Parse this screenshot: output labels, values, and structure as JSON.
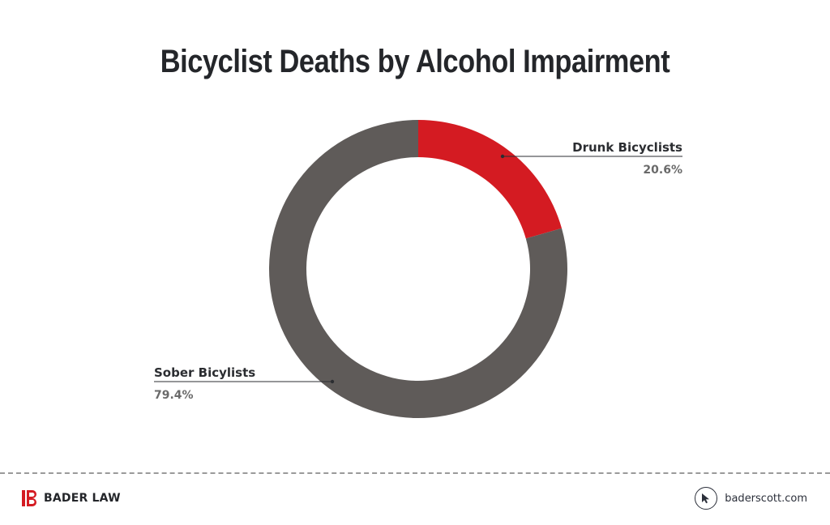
{
  "title": "Bicyclist Deaths by Alcohol Impairment",
  "chart_data": {
    "type": "pie",
    "donut": true,
    "title": "Bicyclist Deaths by Alcohol Impairment",
    "labels": [
      "Drunk Bicyclists",
      "Sober Bicylists"
    ],
    "values": [
      20.6,
      79.4
    ],
    "value_labels": [
      "20.6%",
      "79.4%"
    ],
    "colors": [
      "#d41b22",
      "#5f5b59"
    ],
    "start": "top",
    "direction": "clockwise"
  },
  "footer": {
    "brand": "BADER LAW",
    "brand_color": "#d41b22",
    "site": "baderscott.com",
    "logo_icon": "bader-law-logo-icon",
    "site_icon": "cursor-pointer-icon"
  }
}
